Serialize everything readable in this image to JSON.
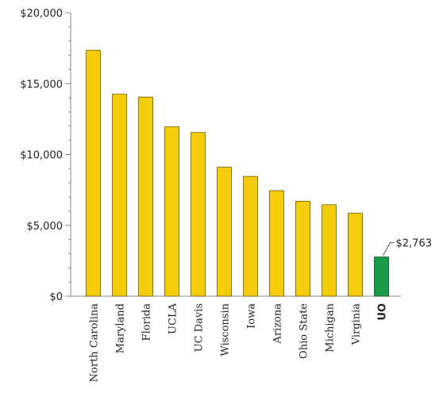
{
  "chart_data": {
    "type": "bar",
    "title": "",
    "xlabel": "",
    "ylabel": "",
    "ylim": [
      0,
      20000
    ],
    "yticks": [
      0,
      5000,
      10000,
      15000,
      20000
    ],
    "ytick_labels": [
      "$0",
      "$5,000",
      "$10,000",
      "$15,000",
      "$20,000"
    ],
    "minor_tick_step": 1000,
    "grid": false,
    "categories": [
      "North Carolina",
      "Maryland",
      "Florida",
      "UCLA",
      "UC Davis",
      "Wisconsin",
      "Iowa",
      "Arizona",
      "Ohio State",
      "Michigan",
      "Virginia",
      "UO"
    ],
    "values": [
      17350,
      14250,
      14050,
      11950,
      11550,
      9100,
      8450,
      7450,
      6700,
      6450,
      5850,
      2763
    ],
    "highlight_index": 11,
    "annotations": [
      {
        "category": "UO",
        "text": "$2,763"
      }
    ],
    "colors": {
      "bar": "#f5cc0a",
      "bar_stroke": "#6b5a00",
      "highlight": "#1a9b48",
      "highlight_stroke": "#0b4d22",
      "axis": "#888888"
    }
  }
}
